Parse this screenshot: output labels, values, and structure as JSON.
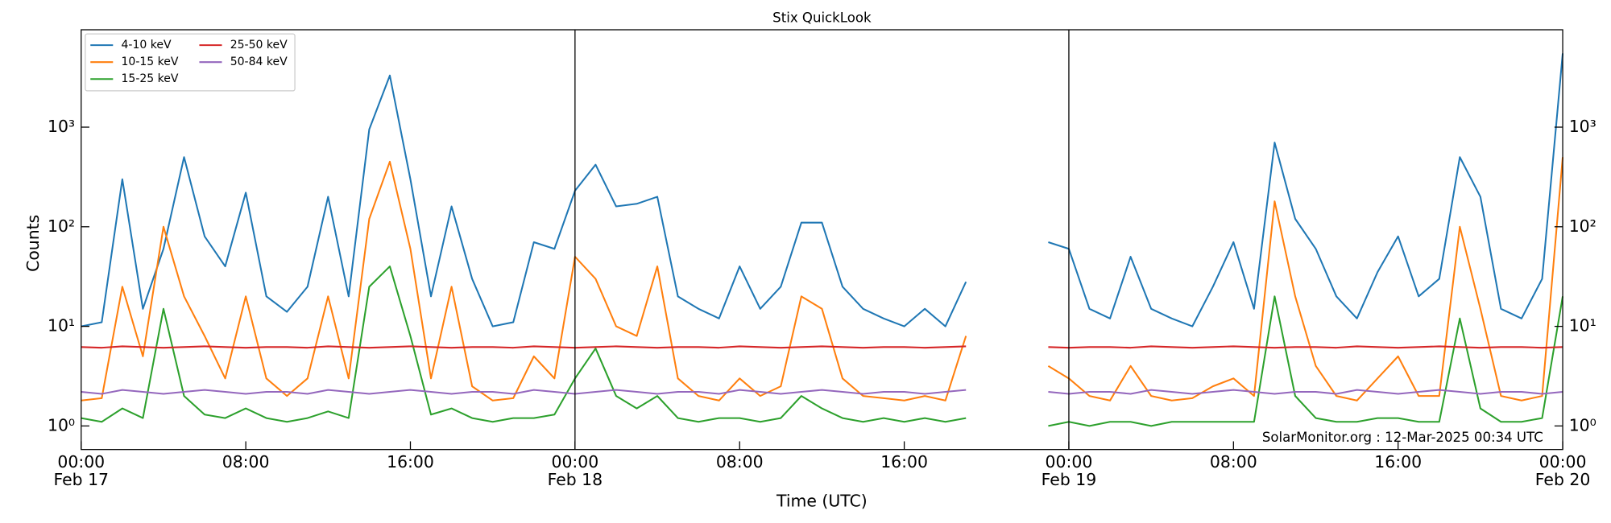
{
  "chart_data": {
    "type": "line",
    "title": "Stix QuickLook",
    "xlabel": "Time (UTC)",
    "ylabel": "Counts",
    "annotation": "SolarMonitor.org : 12-Mar-2025 00:34 UTC",
    "yscale": "log",
    "legend": "upper left",
    "legend_columns": 2,
    "xlim": [
      "Feb 17 00:00",
      "Feb 20 00:00"
    ],
    "xticks": [
      {
        "value": "Feb 17 00:00",
        "label": [
          "00:00",
          "Feb 17"
        ]
      },
      {
        "value": "Feb 17 08:00",
        "label": "08:00"
      },
      {
        "value": "Feb 17 16:00",
        "label": "16:00"
      },
      {
        "value": "Feb 18 00:00",
        "label": [
          "00:00",
          "Feb 18"
        ]
      },
      {
        "value": "Feb 18 08:00",
        "label": "08:00"
      },
      {
        "value": "Feb 18 16:00",
        "label": "16:00"
      },
      {
        "value": "Feb 19 00:00",
        "label": [
          "00:00",
          "Feb 19"
        ]
      },
      {
        "value": "Feb 19 08:00",
        "label": "08:00"
      },
      {
        "value": "Feb 19 16:00",
        "label": "16:00"
      },
      {
        "value": "Feb 20 00:00",
        "label": [
          "00:00",
          "Feb 20"
        ]
      }
    ],
    "ylim": [
      0.58,
      9500
    ],
    "yticks": [
      {
        "value": 1,
        "label": "10⁰"
      },
      {
        "value": 10,
        "label": "10¹"
      },
      {
        "value": 100,
        "label": "10²"
      },
      {
        "value": 1000,
        "label": "10³"
      }
    ],
    "x": [
      "Feb 17 00:00",
      "Feb 17 01:00",
      "Feb 17 02:00",
      "Feb 17 03:00",
      "Feb 17 04:00",
      "Feb 17 05:00",
      "Feb 17 06:00",
      "Feb 17 07:00",
      "Feb 17 08:00",
      "Feb 17 09:00",
      "Feb 17 10:00",
      "Feb 17 11:00",
      "Feb 17 12:00",
      "Feb 17 13:00",
      "Feb 17 14:00",
      "Feb 17 15:00",
      "Feb 17 16:00",
      "Feb 17 17:00",
      "Feb 17 18:00",
      "Feb 17 19:00",
      "Feb 17 20:00",
      "Feb 17 21:00",
      "Feb 17 22:00",
      "Feb 17 23:00",
      "Feb 18 00:00",
      "Feb 18 01:00",
      "Feb 18 02:00",
      "Feb 18 03:00",
      "Feb 18 04:00",
      "Feb 18 05:00",
      "Feb 18 06:00",
      "Feb 18 07:00",
      "Feb 18 08:00",
      "Feb 18 09:00",
      "Feb 18 10:00",
      "Feb 18 11:00",
      "Feb 18 12:00",
      "Feb 18 13:00",
      "Feb 18 14:00",
      "Feb 18 15:00",
      "Feb 18 16:00",
      "Feb 18 17:00",
      "Feb 18 18:00",
      "Feb 18 19:00",
      "Feb 18 20:00",
      "Feb 18 21:00",
      "Feb 18 22:00",
      "Feb 18 23:00",
      "Feb 19 00:00",
      "Feb 19 01:00",
      "Feb 19 02:00",
      "Feb 19 03:00",
      "Feb 19 04:00",
      "Feb 19 05:00",
      "Feb 19 06:00",
      "Feb 19 07:00",
      "Feb 19 08:00",
      "Feb 19 09:00",
      "Feb 19 10:00",
      "Feb 19 11:00",
      "Feb 19 12:00",
      "Feb 19 13:00",
      "Feb 19 14:00",
      "Feb 19 15:00",
      "Feb 19 16:00",
      "Feb 19 17:00",
      "Feb 19 18:00",
      "Feb 19 19:00",
      "Feb 19 20:00",
      "Feb 19 21:00",
      "Feb 19 22:00",
      "Feb 19 23:00",
      "Feb 20 00:00"
    ],
    "series": [
      {
        "name": "4-10 keV",
        "color": "#1f77b4",
        "values": [
          10,
          11,
          300,
          15,
          60,
          500,
          80,
          40,
          220,
          20,
          14,
          25,
          200,
          20,
          950,
          3300,
          300,
          20,
          160,
          30,
          10,
          11,
          70,
          60,
          230,
          420,
          160,
          170,
          200,
          20,
          15,
          12,
          40,
          15,
          25,
          110,
          110,
          25,
          15,
          12,
          10,
          15,
          10,
          28,
          null,
          null,
          null,
          70,
          60,
          15,
          12,
          50,
          15,
          12,
          10,
          25,
          70,
          15,
          700,
          120,
          60,
          20,
          12,
          35,
          80,
          20,
          30,
          500,
          200,
          15,
          12,
          30,
          5500
        ]
      },
      {
        "name": "10-15 keV",
        "color": "#ff7f0e",
        "values": [
          1.8,
          1.9,
          25,
          5,
          100,
          20,
          8,
          3,
          20,
          3,
          2,
          3,
          20,
          3,
          120,
          450,
          60,
          3,
          25,
          2.5,
          1.8,
          1.9,
          5,
          3,
          50,
          30,
          10,
          8,
          40,
          3,
          2,
          1.8,
          3,
          2,
          2.5,
          20,
          15,
          3,
          2,
          1.9,
          1.8,
          2,
          1.8,
          8,
          null,
          null,
          null,
          4,
          3,
          2,
          1.8,
          4,
          2,
          1.8,
          1.9,
          2.5,
          3,
          2,
          180,
          20,
          4,
          2,
          1.8,
          3,
          5,
          2,
          2,
          100,
          15,
          2,
          1.8,
          2,
          500
        ]
      },
      {
        "name": "15-25 keV",
        "color": "#2ca02c",
        "values": [
          1.2,
          1.1,
          1.5,
          1.2,
          15,
          2,
          1.3,
          1.2,
          1.5,
          1.2,
          1.1,
          1.2,
          1.4,
          1.2,
          25,
          40,
          8,
          1.3,
          1.5,
          1.2,
          1.1,
          1.2,
          1.2,
          1.3,
          3,
          6,
          2,
          1.5,
          2,
          1.2,
          1.1,
          1.2,
          1.2,
          1.1,
          1.2,
          2,
          1.5,
          1.2,
          1.1,
          1.2,
          1.1,
          1.2,
          1.1,
          1.2,
          null,
          null,
          null,
          1,
          1.1,
          1,
          1.1,
          1.1,
          1,
          1.1,
          1.1,
          1.1,
          1.1,
          1.1,
          20,
          2,
          1.2,
          1.1,
          1.1,
          1.2,
          1.2,
          1.1,
          1.1,
          12,
          1.5,
          1.1,
          1.1,
          1.2,
          20
        ]
      },
      {
        "name": "25-50 keV",
        "color": "#d62728",
        "values": [
          6.2,
          6.1,
          6.3,
          6.2,
          6.1,
          6.2,
          6.3,
          6.2,
          6.1,
          6.2,
          6.2,
          6.1,
          6.3,
          6.2,
          6.1,
          6.2,
          6.3,
          6.2,
          6.1,
          6.2,
          6.2,
          6.1,
          6.3,
          6.2,
          6.1,
          6.2,
          6.3,
          6.2,
          6.1,
          6.2,
          6.2,
          6.1,
          6.3,
          6.2,
          6.1,
          6.2,
          6.3,
          6.2,
          6.1,
          6.2,
          6.2,
          6.1,
          6.2,
          6.3,
          null,
          null,
          null,
          6.2,
          6.1,
          6.2,
          6.2,
          6.1,
          6.3,
          6.2,
          6.1,
          6.2,
          6.3,
          6.2,
          6.1,
          6.2,
          6.2,
          6.1,
          6.3,
          6.2,
          6.1,
          6.2,
          6.3,
          6.2,
          6.1,
          6.2,
          6.2,
          6.1,
          6.2
        ]
      },
      {
        "name": "50-84 keV",
        "color": "#9467bd",
        "values": [
          2.2,
          2.1,
          2.3,
          2.2,
          2.1,
          2.2,
          2.3,
          2.2,
          2.1,
          2.2,
          2.2,
          2.1,
          2.3,
          2.2,
          2.1,
          2.2,
          2.3,
          2.2,
          2.1,
          2.2,
          2.2,
          2.1,
          2.3,
          2.2,
          2.1,
          2.2,
          2.3,
          2.2,
          2.1,
          2.2,
          2.2,
          2.1,
          2.3,
          2.2,
          2.1,
          2.2,
          2.3,
          2.2,
          2.1,
          2.2,
          2.2,
          2.1,
          2.2,
          2.3,
          null,
          null,
          null,
          2.2,
          2.1,
          2.2,
          2.2,
          2.1,
          2.3,
          2.2,
          2.1,
          2.2,
          2.3,
          2.2,
          2.1,
          2.2,
          2.2,
          2.1,
          2.3,
          2.2,
          2.1,
          2.2,
          2.3,
          2.2,
          2.1,
          2.2,
          2.2,
          2.1,
          2.2
        ]
      }
    ]
  }
}
